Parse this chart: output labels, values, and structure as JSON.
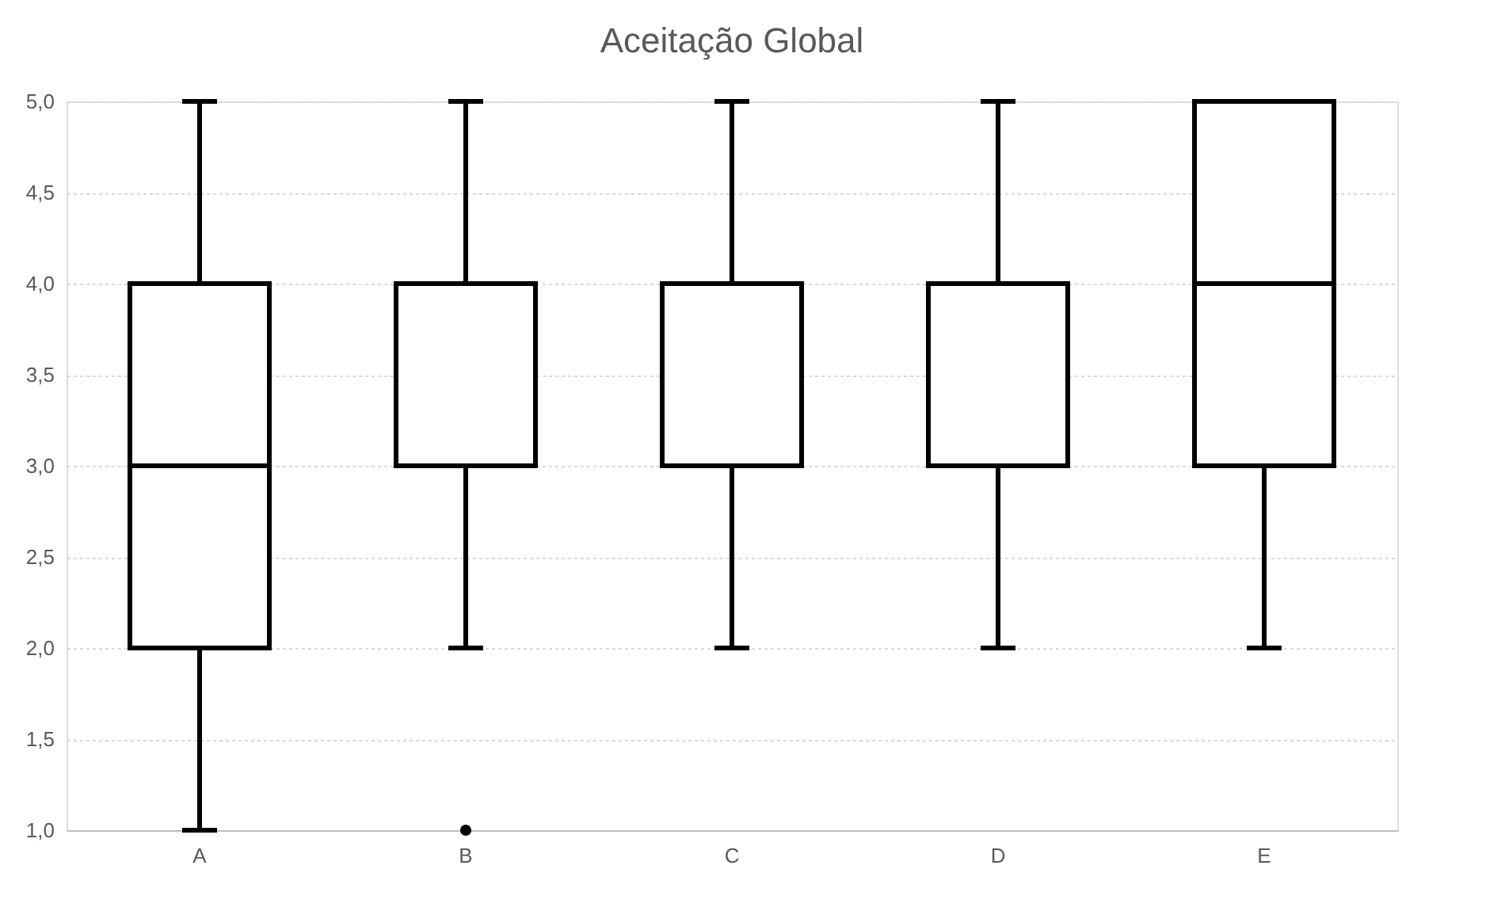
{
  "chart_data": {
    "type": "box",
    "title": "Aceitação Global",
    "categories": [
      "A",
      "B",
      "C",
      "D",
      "E"
    ],
    "boxes": [
      {
        "low": 1,
        "q1": 2,
        "median": 3,
        "q3": 4,
        "high": 5
      },
      {
        "low": 2,
        "q1": 3,
        "median": 4,
        "q3": 4,
        "high": 5,
        "outliers": [
          1
        ]
      },
      {
        "low": 2,
        "q1": 3,
        "median": 4,
        "q3": 4,
        "high": 5
      },
      {
        "low": 2,
        "q1": 3,
        "median": 4,
        "q3": 4,
        "high": 5
      },
      {
        "low": 2,
        "q1": 3,
        "median": 4,
        "q3": 5,
        "high": 5
      }
    ],
    "color": "#000000",
    "ylim": [
      1,
      5
    ],
    "yticks": [
      {
        "value": 1,
        "label": "1,0"
      },
      {
        "value": 1.5,
        "label": "1,5"
      },
      {
        "value": 2,
        "label": "2,0"
      },
      {
        "value": 2.5,
        "label": "2,5"
      },
      {
        "value": 3,
        "label": "3,0"
      },
      {
        "value": 3.5,
        "label": "3,5"
      },
      {
        "value": 4,
        "label": "4,0"
      },
      {
        "value": 4.5,
        "label": "4,5"
      },
      {
        "value": 5,
        "label": "5,0"
      }
    ],
    "grid": "y"
  }
}
